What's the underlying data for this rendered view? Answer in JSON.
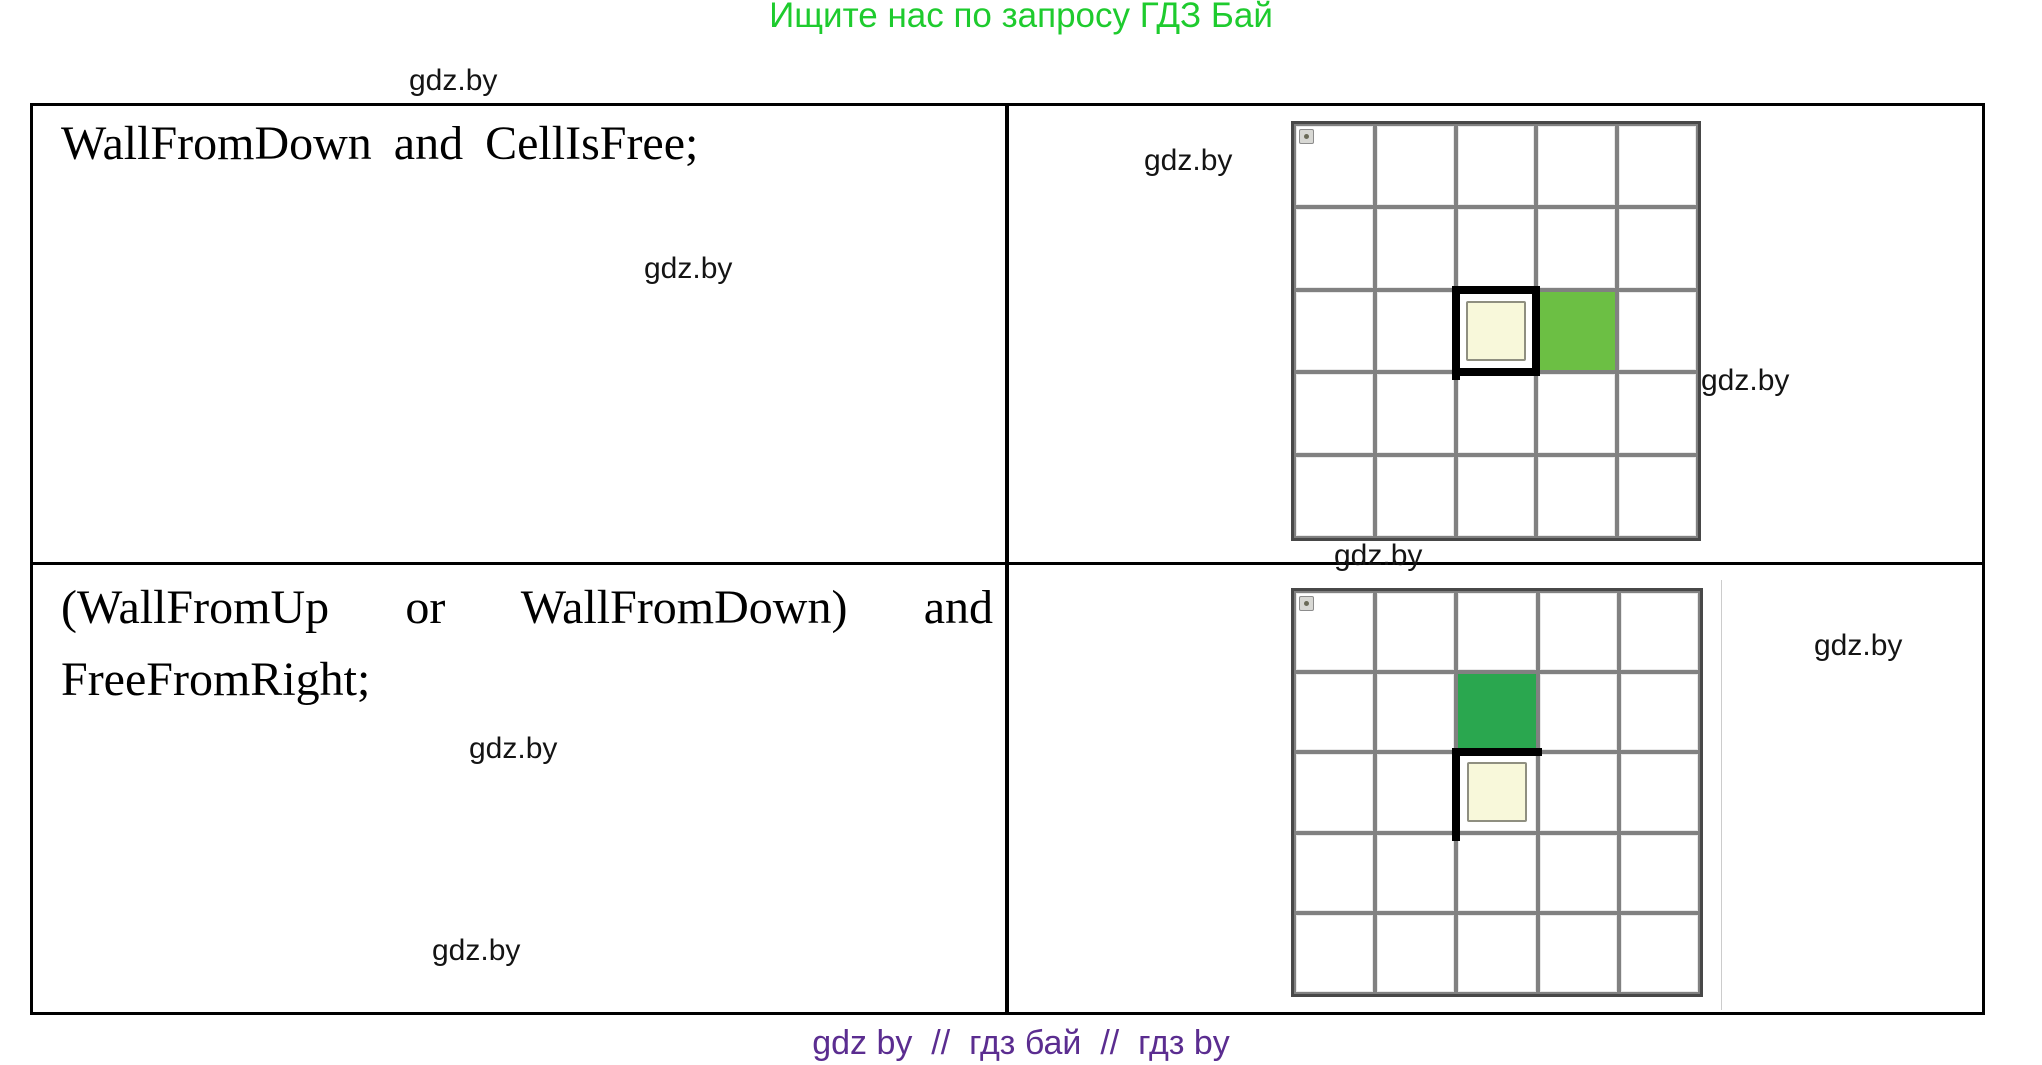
{
  "page": {
    "header_promo": "Ищите нас по запросу ГДЗ Бай",
    "header_color": "#1ecb2e",
    "footer_promo": "gdz by  //  гдз бай  //  гдз by",
    "footer_color": "#5b2d90",
    "watermark_text": "gdz.by"
  },
  "table": {
    "row1": {
      "condition": "WallFromDown and CellIsFree;"
    },
    "row2": {
      "condition_line1": "(WallFromUp or WallFromDown) and",
      "condition_line2": "FreeFromRight;"
    }
  },
  "grids": [
    {
      "rows": 5,
      "cols": 5,
      "marker_cell": {
        "row": 0,
        "col": 0
      },
      "robot_cell": {
        "row": 2,
        "col": 2,
        "walls": [
          "top",
          "left",
          "right",
          "bottom"
        ]
      },
      "robot_color": "#f8f8da",
      "painted_cells": [
        {
          "row": 2,
          "col": 3,
          "color": "#6cbf44"
        }
      ]
    },
    {
      "rows": 5,
      "cols": 5,
      "marker_cell": {
        "row": 0,
        "col": 0
      },
      "robot_cell": {
        "row": 2,
        "col": 2,
        "walls": [
          "top",
          "left"
        ]
      },
      "robot_color": "#f8f8da",
      "painted_cells": [
        {
          "row": 1,
          "col": 2,
          "color": "#2aa74f"
        }
      ]
    }
  ]
}
